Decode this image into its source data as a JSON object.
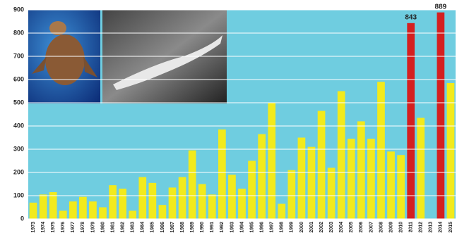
{
  "chart_data": {
    "type": "bar",
    "categories": [
      "1973",
      "1974",
      "1975",
      "1976",
      "1977",
      "1978",
      "1979",
      "1980",
      "1981",
      "1982",
      "1983",
      "1984",
      "1985",
      "1986",
      "1987",
      "1988",
      "1989",
      "1990",
      "1991",
      "1992",
      "1993",
      "1994",
      "1995",
      "1996",
      "1997",
      "1998",
      "1999",
      "2000",
      "2001",
      "2002",
      "2003",
      "2004",
      "2005",
      "2006",
      "2007",
      "2008",
      "2009",
      "2010",
      "2011",
      "2012",
      "2013",
      "2014",
      "2015"
    ],
    "values": [
      70,
      105,
      115,
      35,
      75,
      95,
      75,
      50,
      145,
      130,
      35,
      180,
      155,
      60,
      135,
      180,
      295,
      150,
      105,
      385,
      190,
      130,
      250,
      365,
      500,
      65,
      210,
      350,
      310,
      465,
      220,
      550,
      345,
      420,
      345,
      590,
      290,
      275,
      843,
      435,
      null,
      889,
      585
    ],
    "value_labels": [
      null,
      null,
      null,
      null,
      null,
      null,
      null,
      null,
      null,
      null,
      null,
      null,
      null,
      null,
      null,
      null,
      null,
      null,
      null,
      null,
      null,
      null,
      null,
      null,
      null,
      null,
      null,
      null,
      null,
      null,
      null,
      null,
      null,
      null,
      null,
      null,
      null,
      null,
      "843",
      null,
      null,
      "889",
      null
    ],
    "colors": [
      "#f2ea1c",
      "#f2ea1c",
      "#f2ea1c",
      "#f2ea1c",
      "#f2ea1c",
      "#f2ea1c",
      "#f2ea1c",
      "#f2ea1c",
      "#f2ea1c",
      "#f2ea1c",
      "#f2ea1c",
      "#f2ea1c",
      "#f2ea1c",
      "#f2ea1c",
      "#f2ea1c",
      "#f2ea1c",
      "#f2ea1c",
      "#f2ea1c",
      "#f2ea1c",
      "#f2ea1c",
      "#f2ea1c",
      "#f2ea1c",
      "#f2ea1c",
      "#f2ea1c",
      "#f2ea1c",
      "#f2ea1c",
      "#f2ea1c",
      "#f2ea1c",
      "#f2ea1c",
      "#f2ea1c",
      "#f2ea1c",
      "#f2ea1c",
      "#f2ea1c",
      "#f2ea1c",
      "#f2ea1c",
      "#f2ea1c",
      "#f2ea1c",
      "#f2ea1c",
      "#d42020",
      "#f2ea1c",
      "#f2ea1c",
      "#d42020",
      "#f2ea1c"
    ],
    "ylim": [
      0,
      900
    ],
    "yticks": [
      0,
      100,
      200,
      300,
      400,
      500,
      600,
      700,
      800,
      900
    ],
    "grid": true
  }
}
